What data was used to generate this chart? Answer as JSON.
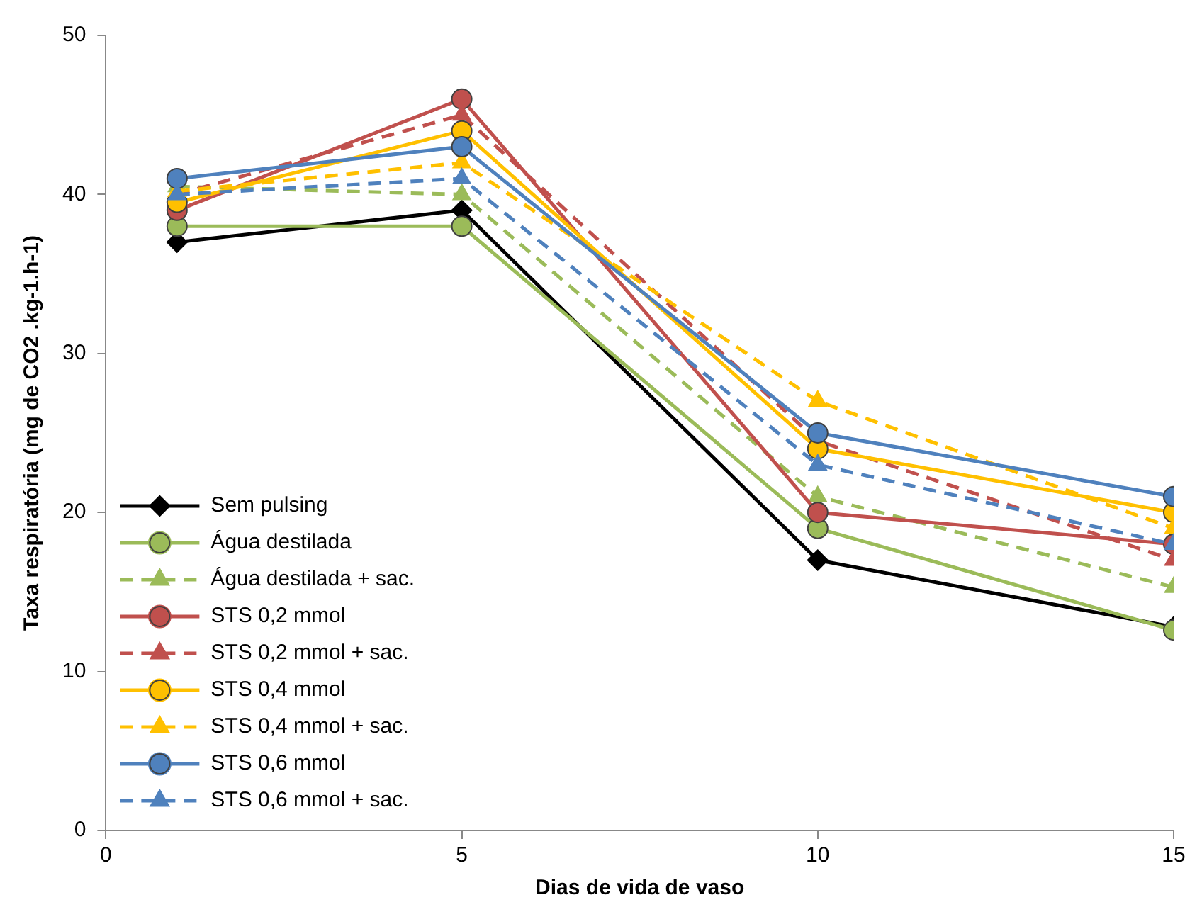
{
  "chart_data": {
    "type": "line",
    "xlabel": "Dias de vida de vaso",
    "ylabel": "Taxa respiratória (mg de CO2 .kg-1.h-1)",
    "x": [
      1,
      5,
      10,
      15
    ],
    "xlim": [
      0,
      15
    ],
    "xticks": [
      0,
      5,
      10,
      15
    ],
    "ylim": [
      0,
      50
    ],
    "yticks": [
      0,
      10,
      20,
      30,
      40,
      50
    ],
    "grid": false,
    "legend": "bottom left",
    "series": [
      {
        "name": "Sem pulsing",
        "color": "#000000",
        "marker": "diamond",
        "line_style": "solid",
        "values": [
          37,
          39,
          17,
          12.8
        ]
      },
      {
        "name": "Água destilada",
        "color": "#9bbb59",
        "marker": "circle",
        "line_style": "solid",
        "values": [
          38,
          38,
          19,
          12.6
        ]
      },
      {
        "name": "Água destilada + sac.",
        "color": "#9bbb59",
        "marker": "triangle",
        "line_style": "dashed",
        "values": [
          40.5,
          40,
          21,
          15.3
        ]
      },
      {
        "name": "STS 0,2 mmol",
        "color": "#c0504d",
        "marker": "circle",
        "line_style": "solid",
        "values": [
          39,
          46,
          20,
          18
        ]
      },
      {
        "name": "STS 0,2 mmol + sac.",
        "color": "#c0504d",
        "marker": "triangle",
        "line_style": "dashed",
        "values": [
          40,
          45,
          24.5,
          17
        ]
      },
      {
        "name": "STS 0,4 mmol",
        "color": "#ffc000",
        "marker": "circle",
        "line_style": "solid",
        "values": [
          39.5,
          44,
          24,
          20
        ]
      },
      {
        "name": "STS 0,4 mmol + sac.",
        "color": "#ffc000",
        "marker": "triangle",
        "line_style": "dashed",
        "values": [
          40.2,
          42,
          27,
          19
        ]
      },
      {
        "name": "STS 0,6 mmol",
        "color": "#4f81bd",
        "marker": "circle",
        "line_style": "solid",
        "values": [
          41,
          43,
          25,
          21
        ]
      },
      {
        "name": "STS 0,6 mmol + sac.",
        "color": "#4f81bd",
        "marker": "triangle",
        "line_style": "dashed",
        "values": [
          40,
          41,
          23,
          18
        ]
      }
    ]
  }
}
